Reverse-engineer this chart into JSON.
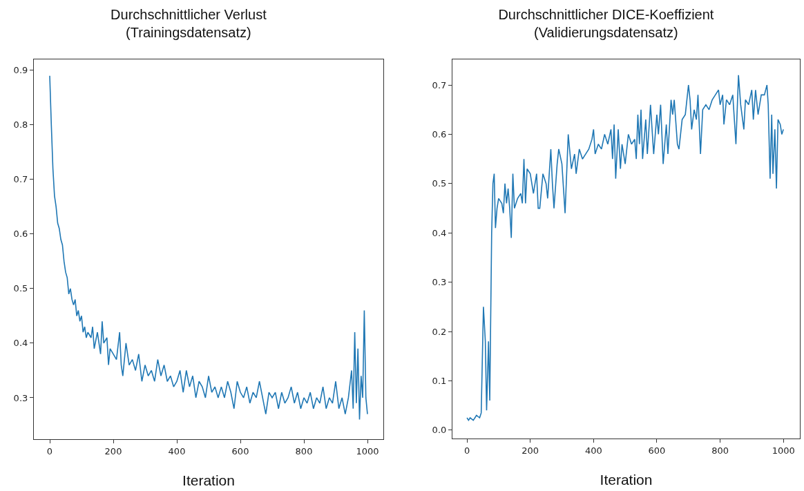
{
  "chart_data": [
    {
      "type": "line",
      "title": "Durchschnittlicher Verlust\n(Trainingsdatensatz)",
      "xlabel": "Iteration",
      "xlim": [
        -50,
        1050
      ],
      "xticks": [
        0,
        200,
        400,
        600,
        800,
        1000
      ],
      "ylim": [
        0.224,
        0.92
      ],
      "yticks": [
        0.3,
        0.4,
        0.5,
        0.6,
        0.7,
        0.8,
        0.9
      ],
      "series": [
        {
          "color": "#1f77b4",
          "x": [
            0,
            5,
            10,
            15,
            20,
            25,
            30,
            35,
            40,
            45,
            50,
            55,
            60,
            65,
            70,
            75,
            80,
            85,
            90,
            95,
            100,
            105,
            110,
            115,
            120,
            130,
            135,
            140,
            150,
            160,
            165,
            170,
            180,
            185,
            190,
            200,
            210,
            220,
            225,
            230,
            240,
            250,
            260,
            270,
            280,
            290,
            300,
            310,
            320,
            330,
            340,
            350,
            360,
            370,
            380,
            390,
            400,
            410,
            420,
            430,
            440,
            450,
            460,
            470,
            480,
            490,
            500,
            510,
            520,
            530,
            540,
            550,
            560,
            570,
            580,
            590,
            600,
            610,
            620,
            630,
            640,
            650,
            660,
            670,
            680,
            690,
            700,
            710,
            720,
            730,
            740,
            750,
            760,
            770,
            780,
            790,
            800,
            810,
            820,
            830,
            840,
            850,
            860,
            870,
            880,
            890,
            900,
            910,
            920,
            930,
            940,
            950,
            955,
            960,
            965,
            970,
            975,
            980,
            985,
            990,
            995,
            1000
          ],
          "values": [
            0.89,
            0.8,
            0.72,
            0.67,
            0.65,
            0.62,
            0.61,
            0.59,
            0.58,
            0.55,
            0.53,
            0.52,
            0.49,
            0.5,
            0.48,
            0.47,
            0.48,
            0.45,
            0.46,
            0.44,
            0.45,
            0.42,
            0.43,
            0.41,
            0.42,
            0.41,
            0.43,
            0.39,
            0.42,
            0.38,
            0.44,
            0.4,
            0.41,
            0.36,
            0.39,
            0.38,
            0.37,
            0.42,
            0.36,
            0.34,
            0.4,
            0.36,
            0.37,
            0.35,
            0.38,
            0.33,
            0.36,
            0.34,
            0.35,
            0.33,
            0.37,
            0.34,
            0.36,
            0.33,
            0.34,
            0.32,
            0.33,
            0.35,
            0.31,
            0.35,
            0.32,
            0.34,
            0.3,
            0.33,
            0.32,
            0.3,
            0.34,
            0.31,
            0.32,
            0.3,
            0.32,
            0.3,
            0.33,
            0.31,
            0.28,
            0.33,
            0.31,
            0.3,
            0.32,
            0.29,
            0.31,
            0.3,
            0.33,
            0.3,
            0.27,
            0.31,
            0.3,
            0.31,
            0.28,
            0.31,
            0.29,
            0.3,
            0.32,
            0.29,
            0.31,
            0.28,
            0.3,
            0.29,
            0.31,
            0.28,
            0.3,
            0.29,
            0.32,
            0.28,
            0.3,
            0.29,
            0.33,
            0.28,
            0.3,
            0.27,
            0.3,
            0.35,
            0.28,
            0.42,
            0.29,
            0.39,
            0.26,
            0.34,
            0.3,
            0.46,
            0.3,
            0.27
          ]
        }
      ]
    },
    {
      "type": "line",
      "title": "Durchschnittlicher DICE-Koeffizient\n(Validierungsdatensatz)",
      "xlabel": "Iteration",
      "xlim": [
        -46,
        1052
      ],
      "xticks": [
        0,
        200,
        400,
        600,
        800,
        1000
      ],
      "ylim": [
        -0.017,
        0.752
      ],
      "yticks": [
        {
          "value": 0,
          "label": "0.0"
        },
        0.1,
        0.2,
        0.3,
        0.4,
        0.5,
        0.6,
        0.7
      ],
      "series": [
        {
          "color": "#1f77b4",
          "x": [
            0,
            5,
            10,
            20,
            30,
            40,
            45,
            52,
            58,
            62,
            68,
            72,
            78,
            82,
            86,
            90,
            95,
            100,
            110,
            115,
            120,
            125,
            130,
            135,
            140,
            145,
            150,
            160,
            170,
            175,
            180,
            185,
            190,
            200,
            210,
            220,
            225,
            230,
            240,
            250,
            255,
            265,
            270,
            275,
            285,
            290,
            300,
            310,
            320,
            330,
            340,
            345,
            355,
            365,
            375,
            385,
            395,
            400,
            405,
            415,
            425,
            435,
            445,
            455,
            460,
            465,
            470,
            478,
            485,
            490,
            500,
            510,
            520,
            530,
            535,
            540,
            545,
            550,
            555,
            565,
            570,
            580,
            590,
            600,
            605,
            612,
            620,
            630,
            635,
            645,
            650,
            655,
            665,
            670,
            680,
            690,
            700,
            705,
            710,
            718,
            725,
            730,
            738,
            745,
            755,
            765,
            775,
            785,
            795,
            800,
            808,
            812,
            820,
            830,
            840,
            850,
            858,
            865,
            875,
            880,
            890,
            900,
            905,
            912,
            920,
            930,
            940,
            948,
            952,
            958,
            963,
            967,
            973,
            978,
            983,
            990,
            995,
            1000
          ],
          "values": [
            0.025,
            0.02,
            0.025,
            0.02,
            0.03,
            0.025,
            0.035,
            0.25,
            0.18,
            0.04,
            0.18,
            0.06,
            0.4,
            0.5,
            0.52,
            0.41,
            0.45,
            0.47,
            0.46,
            0.44,
            0.5,
            0.46,
            0.49,
            0.45,
            0.39,
            0.52,
            0.45,
            0.47,
            0.48,
            0.46,
            0.55,
            0.46,
            0.53,
            0.52,
            0.48,
            0.52,
            0.45,
            0.45,
            0.52,
            0.5,
            0.47,
            0.57,
            0.5,
            0.45,
            0.54,
            0.57,
            0.54,
            0.44,
            0.6,
            0.53,
            0.56,
            0.52,
            0.57,
            0.55,
            0.56,
            0.57,
            0.59,
            0.61,
            0.56,
            0.58,
            0.57,
            0.6,
            0.58,
            0.61,
            0.55,
            0.62,
            0.51,
            0.61,
            0.53,
            0.58,
            0.54,
            0.6,
            0.58,
            0.59,
            0.55,
            0.64,
            0.58,
            0.65,
            0.55,
            0.63,
            0.56,
            0.66,
            0.56,
            0.64,
            0.6,
            0.66,
            0.54,
            0.62,
            0.56,
            0.67,
            0.64,
            0.67,
            0.58,
            0.57,
            0.63,
            0.64,
            0.7,
            0.67,
            0.61,
            0.65,
            0.63,
            0.68,
            0.56,
            0.65,
            0.66,
            0.65,
            0.67,
            0.68,
            0.69,
            0.66,
            0.68,
            0.62,
            0.67,
            0.66,
            0.68,
            0.58,
            0.72,
            0.66,
            0.61,
            0.67,
            0.66,
            0.69,
            0.63,
            0.69,
            0.64,
            0.68,
            0.68,
            0.7,
            0.66,
            0.51,
            0.64,
            0.52,
            0.61,
            0.49,
            0.63,
            0.62,
            0.6,
            0.61
          ]
        }
      ]
    }
  ]
}
